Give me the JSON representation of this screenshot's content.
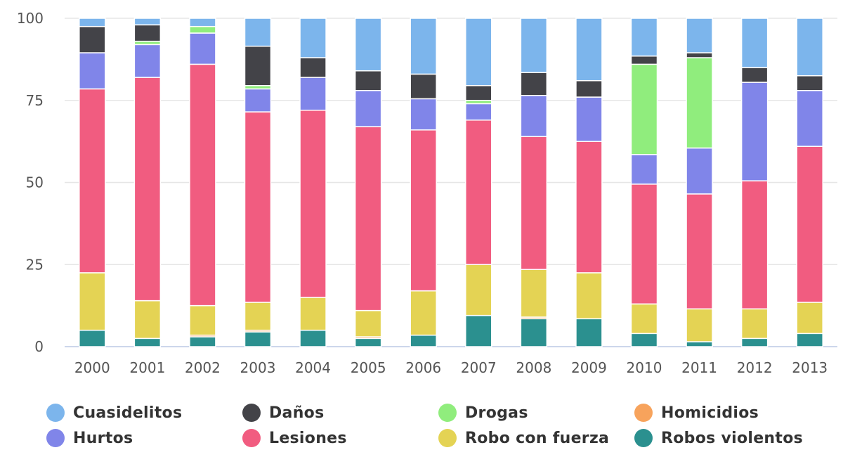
{
  "chart_data": {
    "type": "bar",
    "stacked": true,
    "title": "",
    "xlabel": "",
    "ylabel": "",
    "ylim": [
      0,
      100
    ],
    "yticks": [
      0,
      25,
      50,
      75,
      100
    ],
    "grid": true,
    "legend_position": "bottom",
    "categories": [
      "2000",
      "2001",
      "2002",
      "2003",
      "2004",
      "2005",
      "2006",
      "2007",
      "2008",
      "2009",
      "2010",
      "2011",
      "2012",
      "2013"
    ],
    "series": [
      {
        "name": "Robos violentos",
        "color": "#2b908f",
        "values": [
          5,
          2.5,
          3,
          4.5,
          5,
          2.5,
          3.5,
          9.5,
          8.5,
          8.5,
          4,
          1.5,
          2.5,
          4
        ]
      },
      {
        "name": "Homicidios",
        "color": "#f7a35c",
        "values": [
          0,
          0,
          0.5,
          0.5,
          0,
          0.5,
          0,
          0,
          0.5,
          0,
          0,
          0,
          0,
          0
        ]
      },
      {
        "name": "Robo con fuerza",
        "color": "#e4d354",
        "values": [
          17.5,
          11.5,
          9,
          8.5,
          10,
          8,
          13.5,
          15.5,
          14.5,
          14,
          9,
          10,
          9,
          9.5
        ]
      },
      {
        "name": "Lesiones",
        "color": "#f15c80",
        "values": [
          56,
          68,
          73.5,
          58,
          57,
          56,
          49,
          44,
          40.5,
          40,
          36.5,
          35,
          39,
          47.5
        ]
      },
      {
        "name": "Hurtos",
        "color": "#8085e9",
        "values": [
          11,
          10,
          9.5,
          7,
          10,
          11,
          9.5,
          5,
          12.5,
          13.5,
          9,
          14,
          30,
          17
        ]
      },
      {
        "name": "Drogas",
        "color": "#90ed7d",
        "values": [
          0,
          1,
          2,
          1,
          0,
          0,
          0,
          1,
          0,
          0,
          27.5,
          27.5,
          0,
          0
        ]
      },
      {
        "name": "Daños",
        "color": "#434348",
        "values": [
          8,
          5,
          0,
          12,
          6,
          6,
          7.5,
          4.5,
          7,
          5,
          2.5,
          1.5,
          4.5,
          4.5
        ]
      },
      {
        "name": "Cuasidelitos",
        "color": "#7cb5ec",
        "values": [
          2.5,
          2,
          2.5,
          8.5,
          12,
          16,
          17,
          20.5,
          16.5,
          19,
          11.5,
          10.5,
          15,
          17.5
        ]
      }
    ],
    "legend_order": [
      "Cuasidelitos",
      "Daños",
      "Drogas",
      "Homicidios",
      "Hurtos",
      "Lesiones",
      "Robo con fuerza",
      "Robos violentos"
    ]
  }
}
